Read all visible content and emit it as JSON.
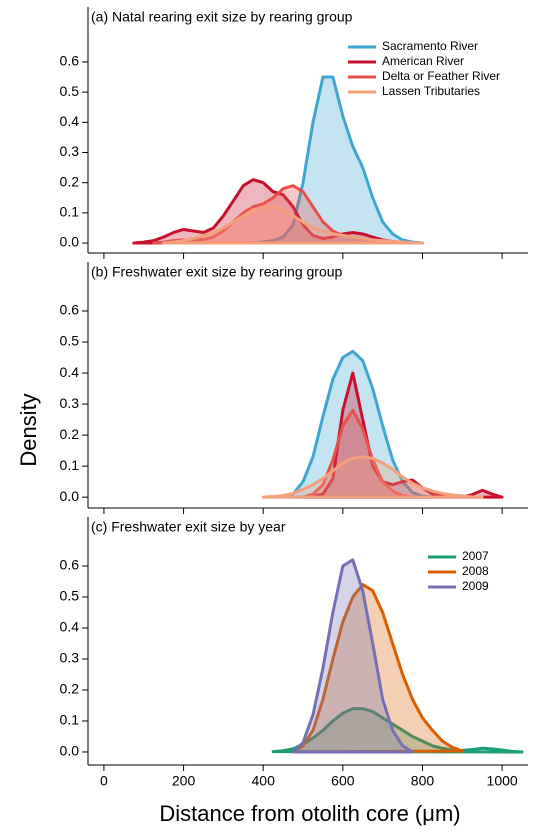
{
  "chart_data": [
    {
      "type": "density",
      "title": "(a)  Natal rearing exit size by rearing group",
      "x": [
        75,
        100,
        125,
        150,
        175,
        200,
        225,
        250,
        275,
        300,
        325,
        350,
        375,
        400,
        425,
        450,
        475,
        500,
        525,
        550,
        575,
        600,
        625,
        650,
        675,
        700,
        725,
        750,
        775,
        800
      ],
      "series": [
        {
          "name": "Sacramento River",
          "color": "#3ea6cf",
          "values": [
            null,
            null,
            null,
            null,
            null,
            null,
            null,
            null,
            null,
            null,
            null,
            null,
            0,
            0.003,
            0.008,
            0.02,
            0.06,
            0.2,
            0.4,
            0.55,
            0.55,
            0.42,
            0.32,
            0.25,
            0.15,
            0.07,
            0.03,
            0.01,
            0.003,
            0
          ]
        },
        {
          "name": "American River",
          "color": "#c8102e",
          "values": [
            0,
            0.003,
            0.008,
            0.02,
            0.035,
            0.045,
            0.04,
            0.035,
            0.05,
            0.09,
            0.14,
            0.19,
            0.21,
            0.2,
            0.17,
            0.16,
            0.12,
            0.06,
            0.025,
            0.015,
            0.02,
            0.03,
            0.035,
            0.03,
            0.02,
            0.01,
            0.005,
            0.001,
            null,
            null
          ]
        },
        {
          "name": "Delta or Feather River",
          "color": "#e8504a",
          "values": [
            null,
            null,
            0,
            0.003,
            0.008,
            0.01,
            0.01,
            0.012,
            0.02,
            0.04,
            0.07,
            0.1,
            0.12,
            0.13,
            0.15,
            0.18,
            0.19,
            0.17,
            0.12,
            0.07,
            0.04,
            0.025,
            0.02,
            0.015,
            0.01,
            0.005,
            0.002,
            0,
            null,
            null
          ]
        },
        {
          "name": "Lassen Tributaries",
          "color": "#f4a07a",
          "values": [
            null,
            null,
            null,
            0,
            0.003,
            0.008,
            0.015,
            0.025,
            0.035,
            0.05,
            0.07,
            0.09,
            0.11,
            0.12,
            0.12,
            0.11,
            0.09,
            0.07,
            0.05,
            0.04,
            0.03,
            0.025,
            0.02,
            0.015,
            0.01,
            0.008,
            0.005,
            0.003,
            0.001,
            0
          ]
        }
      ],
      "xlim": [
        -40,
        1065
      ],
      "ylim": [
        -0.033,
        0.782
      ],
      "yticks": [
        {
          "value": 0,
          "label": "0.0"
        },
        0.1,
        0.2,
        0.3,
        0.4,
        0.5,
        0.6
      ],
      "legend": "upper right"
    },
    {
      "type": "density",
      "title": "(b)  Freshwater exit size by rearing group",
      "ylabel": "Density",
      "x": [
        400,
        425,
        450,
        475,
        500,
        525,
        550,
        575,
        600,
        625,
        650,
        675,
        700,
        725,
        750,
        775,
        800,
        825,
        850,
        875,
        900,
        925,
        950,
        975,
        1000
      ],
      "series": [
        {
          "name": "Sacramento River",
          "color": "#3ea6cf",
          "values": [
            null,
            null,
            0,
            0.01,
            0.05,
            0.13,
            0.26,
            0.38,
            0.45,
            0.47,
            0.44,
            0.35,
            0.23,
            0.12,
            0.05,
            0.015,
            0.003,
            0,
            null,
            null,
            null,
            null,
            null,
            null,
            null
          ]
        },
        {
          "name": "American River",
          "color": "#c8102e",
          "values": [
            null,
            null,
            null,
            null,
            0,
            0.003,
            0.01,
            0.06,
            0.28,
            0.4,
            0.25,
            0.1,
            0.05,
            0.04,
            0.05,
            0.055,
            0.03,
            0.01,
            0.003,
            0.001,
            0.001,
            0.008,
            0.022,
            0.01,
            0
          ]
        },
        {
          "name": "Delta or Feather River",
          "color": "#e8504a",
          "values": [
            null,
            null,
            null,
            null,
            0,
            0.01,
            0.04,
            0.12,
            0.23,
            0.28,
            0.22,
            0.12,
            0.05,
            0.02,
            0.005,
            0,
            null,
            null,
            null,
            null,
            null,
            null,
            null,
            null,
            null
          ]
        },
        {
          "name": "Lassen Tributaries",
          "color": "#f4a07a",
          "values": [
            0,
            0.002,
            0.005,
            0.012,
            0.025,
            0.04,
            0.06,
            0.085,
            0.11,
            0.125,
            0.13,
            0.125,
            0.11,
            0.09,
            0.065,
            0.045,
            0.03,
            0.02,
            0.012,
            0.007,
            0.004,
            0.001,
            0,
            null,
            null
          ]
        }
      ],
      "xlim": [
        -40,
        1065
      ],
      "ylim": [
        -0.035,
        0.758
      ],
      "yticks": [
        {
          "value": 0,
          "label": "0.0"
        },
        0.1,
        0.2,
        0.3,
        0.4,
        0.5,
        0.6
      ]
    },
    {
      "type": "density",
      "title": "(c)  Freshwater exit size by year",
      "xlabel": "Distance from otolith core (μm)",
      "x": [
        400,
        425,
        450,
        475,
        500,
        525,
        550,
        575,
        600,
        625,
        650,
        675,
        700,
        725,
        750,
        775,
        800,
        825,
        850,
        875,
        900,
        925,
        950,
        975,
        1000,
        1025,
        1050
      ],
      "series": [
        {
          "name": "2007",
          "color": "#1b9e77",
          "values": [
            null,
            0.001,
            0.004,
            0.01,
            0.025,
            0.045,
            0.07,
            0.1,
            0.125,
            0.14,
            0.14,
            0.13,
            0.11,
            0.09,
            0.07,
            0.05,
            0.035,
            0.02,
            0.012,
            0.006,
            0.005,
            0.008,
            0.012,
            0.01,
            0.006,
            0.002,
            0
          ]
        },
        {
          "name": "2008",
          "color": "#d95f02",
          "values": [
            null,
            null,
            null,
            0,
            0.02,
            0.07,
            0.17,
            0.3,
            0.42,
            0.5,
            0.54,
            0.52,
            0.45,
            0.35,
            0.25,
            0.17,
            0.11,
            0.07,
            0.035,
            0.015,
            0.003,
            null,
            null,
            null,
            null,
            null,
            null
          ]
        },
        {
          "name": "2009",
          "color": "#7570b3",
          "values": [
            null,
            null,
            null,
            0,
            0.03,
            0.12,
            0.27,
            0.45,
            0.6,
            0.62,
            0.52,
            0.35,
            0.17,
            0.07,
            0.02,
            0,
            null,
            null,
            null,
            null,
            null,
            null,
            null,
            null,
            null,
            null,
            null
          ]
        }
      ],
      "xlim": [
        -40,
        1065
      ],
      "ylim": [
        -0.042,
        0.758
      ],
      "xticks": [
        0,
        200,
        400,
        600,
        800,
        1000
      ],
      "yticks": [
        {
          "value": 0,
          "label": "0.0"
        },
        0.1,
        0.2,
        0.3,
        0.4,
        0.5,
        0.6
      ],
      "legend": "upper right"
    }
  ]
}
